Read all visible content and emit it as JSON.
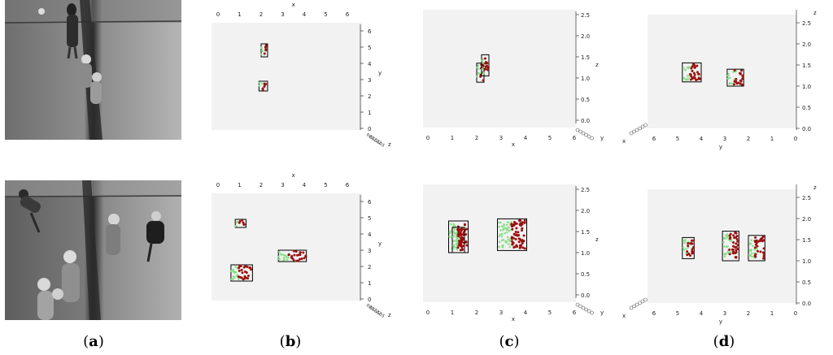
{
  "captions": [
    {
      "open": "(",
      "letter": "a",
      "close": ")"
    },
    {
      "open": "(",
      "letter": "b",
      "close": ")"
    },
    {
      "open": "(",
      "letter": "c",
      "close": ")"
    },
    {
      "open": "(",
      "letter": "d",
      "close": ")"
    }
  ],
  "photos": [
    {
      "description": "overhead grayscale view of pedestrians, top row"
    },
    {
      "description": "overhead grayscale view of pedestrians, bottom row"
    }
  ],
  "colors": {
    "panel_bg": "#f2f2f2",
    "red_points": "#9b0f0f",
    "green_points": "#8be08b",
    "box": "#000000"
  },
  "chart_data": [
    {
      "id": "b-top",
      "type": "scatter",
      "view": "top (x–y)",
      "xlabel": "x",
      "ylabel": "y",
      "zlabel": "z",
      "x_ticks": [
        "0",
        "1",
        "2",
        "3",
        "4",
        "5",
        "6"
      ],
      "y_ticks": [
        "0",
        "1",
        "2",
        "3",
        "4",
        "5",
        "6"
      ],
      "z_ticks": [
        "0.0",
        "0.5",
        "1.0",
        "1.5",
        "2.0",
        "2.5"
      ],
      "boxes": [
        {
          "x": [
            2.0,
            2.3
          ],
          "y": [
            4.4,
            5.2
          ]
        },
        {
          "x": [
            1.9,
            2.3
          ],
          "y": [
            2.3,
            2.9
          ]
        }
      ]
    },
    {
      "id": "b-bottom",
      "type": "scatter",
      "view": "top (x–y)",
      "xlabel": "x",
      "ylabel": "y",
      "zlabel": "z",
      "x_ticks": [
        "0",
        "1",
        "2",
        "3",
        "4",
        "5",
        "6"
      ],
      "y_ticks": [
        "0",
        "1",
        "2",
        "3",
        "4",
        "5",
        "6"
      ],
      "z_ticks": [
        "0.0",
        "0.5",
        "1.0",
        "1.5",
        "2.0",
        "2.5"
      ],
      "boxes": [
        {
          "x": [
            0.8,
            1.3
          ],
          "y": [
            4.4,
            4.9
          ]
        },
        {
          "x": [
            0.6,
            1.6
          ],
          "y": [
            1.1,
            2.1
          ]
        },
        {
          "x": [
            2.8,
            4.1
          ],
          "y": [
            2.3,
            3.0
          ]
        }
      ]
    },
    {
      "id": "c-top",
      "type": "scatter",
      "view": "side (x–z)",
      "xlabel": "x",
      "ylabel": "y",
      "zlabel": "z",
      "x_ticks": [
        "0",
        "1",
        "2",
        "3",
        "4",
        "5",
        "6"
      ],
      "z_ticks": [
        "0.0",
        "0.5",
        "1.0",
        "1.5",
        "2.0",
        "2.5"
      ],
      "boxes": [
        {
          "x": [
            2.0,
            2.3
          ],
          "z": [
            0.9,
            1.35
          ]
        },
        {
          "x": [
            2.2,
            2.5
          ],
          "z": [
            1.05,
            1.55
          ]
        }
      ]
    },
    {
      "id": "c-bottom",
      "type": "scatter",
      "view": "side (x–z)",
      "xlabel": "x",
      "ylabel": "y",
      "zlabel": "z",
      "x_ticks": [
        "0",
        "1",
        "2",
        "3",
        "4",
        "5",
        "6"
      ],
      "z_ticks": [
        "0.0",
        "0.5",
        "1.0",
        "1.5",
        "2.0",
        "2.5"
      ],
      "boxes": [
        {
          "x": [
            0.85,
            1.65
          ],
          "z": [
            1.0,
            1.75
          ]
        },
        {
          "x": [
            2.85,
            4.05
          ],
          "z": [
            1.05,
            1.8
          ]
        },
        {
          "x": [
            1.0,
            1.5
          ],
          "z": [
            1.0,
            1.6
          ]
        }
      ]
    },
    {
      "id": "d-top",
      "type": "scatter",
      "view": "side (y–z)",
      "xlabel": "x",
      "ylabel": "y",
      "zlabel": "z",
      "y_ticks": [
        "6",
        "5",
        "4",
        "3",
        "2",
        "1",
        "0"
      ],
      "z_ticks": [
        "0.0",
        "0.5",
        "1.0",
        "1.5",
        "2.0",
        "2.5"
      ],
      "boxes": [
        {
          "y": [
            4.0,
            4.8
          ],
          "z": [
            1.1,
            1.55
          ]
        },
        {
          "y": [
            2.2,
            2.9
          ],
          "z": [
            1.0,
            1.4
          ]
        }
      ]
    },
    {
      "id": "d-bottom",
      "type": "scatter",
      "view": "side (y–z)",
      "xlabel": "x",
      "ylabel": "y",
      "zlabel": "z",
      "y_ticks": [
        "6",
        "5",
        "4",
        "3",
        "2",
        "1",
        "0"
      ],
      "z_ticks": [
        "0.0",
        "0.5",
        "1.0",
        "1.5",
        "2.0",
        "2.5"
      ],
      "boxes": [
        {
          "y": [
            4.3,
            4.8
          ],
          "z": [
            1.05,
            1.55
          ]
        },
        {
          "y": [
            2.4,
            3.1
          ],
          "z": [
            1.0,
            1.7
          ]
        },
        {
          "y": [
            1.3,
            2.0
          ],
          "z": [
            1.0,
            1.6
          ]
        }
      ]
    }
  ]
}
